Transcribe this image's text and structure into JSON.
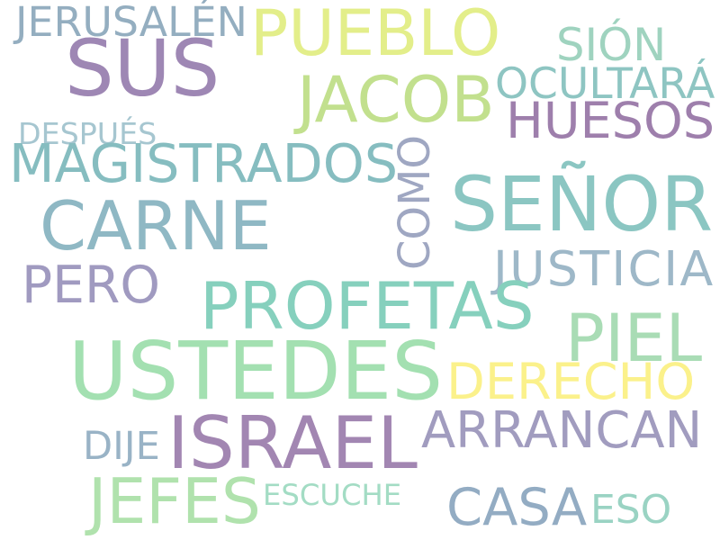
{
  "words": [
    {
      "text": "JERUSALÉN",
      "color": "#94aec0"
    },
    {
      "text": "PUEBLO",
      "color": "#e3ee8a"
    },
    {
      "text": "SUS",
      "color": "#9e87b4"
    },
    {
      "text": "SIÓN",
      "color": "#9fd3bf"
    },
    {
      "text": "OCULTARÁ",
      "color": "#8ec5c2"
    },
    {
      "text": "JACOB",
      "color": "#c2e08e"
    },
    {
      "text": "HUESOS",
      "color": "#9e7fac"
    },
    {
      "text": "DESPUÉS",
      "color": "#a6c6d0"
    },
    {
      "text": "MAGISTRADOS",
      "color": "#86bdc0"
    },
    {
      "text": "COMO",
      "color": "#9fa7c2"
    },
    {
      "text": "SEÑOR",
      "color": "#8bc6c2"
    },
    {
      "text": "CARNE",
      "color": "#8fb8c4"
    },
    {
      "text": "JUSTICIA",
      "color": "#9eb8c8"
    },
    {
      "text": "PERO",
      "color": "#a09ac0"
    },
    {
      "text": "PROFETAS",
      "color": "#86d0bd"
    },
    {
      "text": "PIEL",
      "color": "#a9dcb5"
    },
    {
      "text": "USTEDES",
      "color": "#a3e0b1"
    },
    {
      "text": "DERECHO",
      "color": "#fbf18b"
    },
    {
      "text": "ISRAEL",
      "color": "#a286b2"
    },
    {
      "text": "ARRANCAN",
      "color": "#a19cbf"
    },
    {
      "text": "DIJE",
      "color": "#99b3c6"
    },
    {
      "text": "JEFES",
      "color": "#b0e2ad"
    },
    {
      "text": "ESCUCHE",
      "color": "#a3dcc4"
    },
    {
      "text": "CASA",
      "color": "#93acc3"
    },
    {
      "text": "ESO",
      "color": "#9ad3c3"
    }
  ]
}
